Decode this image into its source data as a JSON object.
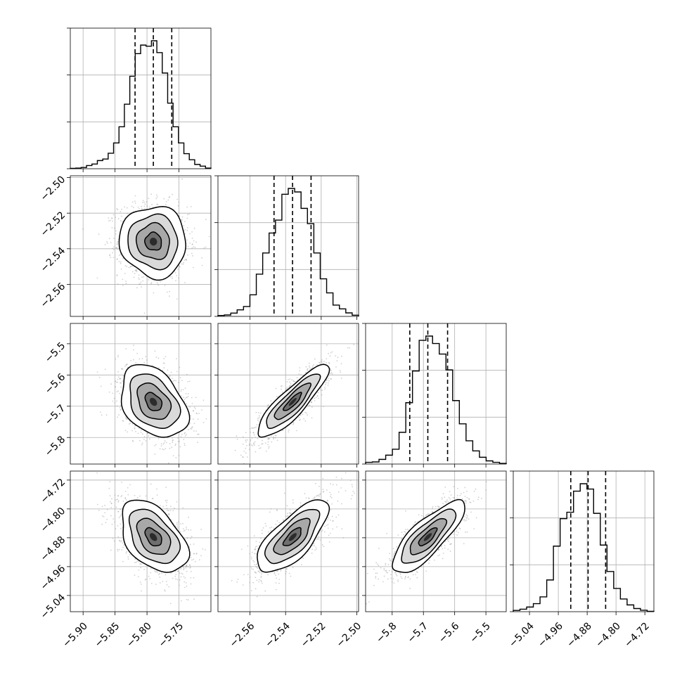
{
  "chart_data": {
    "type": "corner",
    "n_params": 4,
    "colors": {
      "line": "#000000",
      "grid": "#b0b0b0",
      "scatter": "#9a9a9a",
      "density_levels": [
        "#ffffff",
        "#d9d9d9",
        "#a8a8a8",
        "#6e6e6e",
        "#2b2b2b"
      ]
    },
    "grid": true,
    "parameters": [
      {
        "range": [
          -5.92,
          -5.7
        ],
        "ticks": [
          -5.9,
          -5.85,
          -5.8,
          -5.75
        ],
        "tick_labels": [
          "−5.90",
          "−5.85",
          "−5.80",
          "−5.75"
        ],
        "mean": -5.79,
        "sd": 0.026,
        "quantiles": [
          -5.8187,
          -5.7901,
          -5.7613
        ]
      },
      {
        "range": [
          -2.578,
          -2.499
        ],
        "ticks": [
          -2.56,
          -2.54,
          -2.52,
          -2.5
        ],
        "tick_labels": [
          "−2.56",
          "−2.54",
          "−2.52",
          "−2.50"
        ],
        "mean": -2.536,
        "sd": 0.01,
        "quantiles": [
          -2.5465,
          -2.5361,
          -2.5257
        ]
      },
      {
        "range": [
          -5.885,
          -5.435
        ],
        "ticks": [
          -5.8,
          -5.7,
          -5.6,
          -5.5
        ],
        "tick_labels": [
          "−5.8",
          "−5.7",
          "−5.6",
          "−5.5"
        ],
        "mean": -5.686,
        "sd": 0.058,
        "quantiles": [
          -5.7437,
          -5.6859,
          -5.6227
        ]
      },
      {
        "range": [
          -5.085,
          -4.695
        ],
        "ticks": [
          -5.04,
          -4.96,
          -4.88,
          -4.8,
          -4.72
        ],
        "tick_labels": [
          "−5.04",
          "−4.96",
          "−4.88",
          "−4.80",
          "−4.72"
        ],
        "mean": -4.878,
        "sd": 0.05,
        "quantiles": [
          -4.9255,
          -4.8774,
          -4.8288
        ]
      }
    ],
    "histograms": [
      [
        2,
        3,
        6,
        15,
        22,
        38,
        45,
        72,
        120,
        195,
        300,
        430,
        535,
        575,
        570,
        595,
        540,
        445,
        305,
        195,
        120,
        70,
        42,
        20,
        12,
        3
      ],
      [
        4,
        6,
        14,
        28,
        42,
        92,
        180,
        270,
        355,
        410,
        520,
        545,
        530,
        460,
        395,
        270,
        160,
        100,
        48,
        32,
        15,
        5
      ],
      [
        8,
        10,
        22,
        42,
        70,
        150,
        290,
        440,
        585,
        605,
        570,
        520,
        445,
        300,
        190,
        110,
        62,
        32,
        15,
        8,
        3
      ],
      [
        6,
        12,
        22,
        38,
        70,
        150,
        310,
        440,
        470,
        570,
        605,
        580,
        465,
        315,
        190,
        110,
        60,
        32,
        15,
        7,
        2
      ]
    ],
    "correlations": {
      "1-0": -0.05,
      "2-0": -0.35,
      "2-1": 0.87,
      "3-0": -0.45,
      "3-1": 0.72,
      "3-2": 0.8
    },
    "contour_levels_sigma": [
      0.5,
      1.0,
      1.5,
      2.0
    ]
  }
}
